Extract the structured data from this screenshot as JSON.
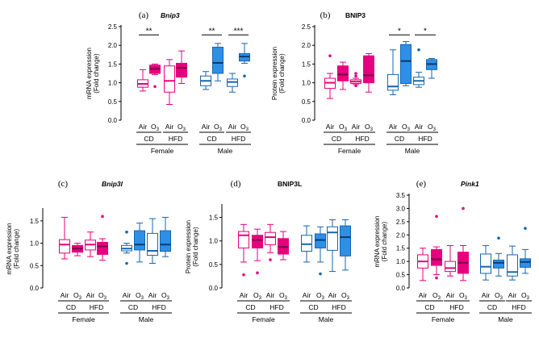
{
  "colors": {
    "female_air": "#e6007e",
    "female_o3_fill": "#e6007e",
    "male_air": "#1565b0",
    "male_o3_fill": "#2f8fe6",
    "axis": "#000000"
  },
  "chart_data": [
    {
      "id": "a",
      "type": "box",
      "letter": "(a)",
      "gene": "Bnip3",
      "italic": true,
      "ylabel_lines": [
        "mRNA expression",
        "(Fold change)"
      ],
      "ylim": [
        0,
        2.5
      ],
      "yticks": [
        0,
        0.5,
        1.0,
        1.5,
        2.0,
        2.5
      ],
      "tick_labels": [
        "0.0",
        "0.5",
        "1.0",
        "1.5",
        "2.0",
        "2.5"
      ],
      "exposure_labels": [
        "Air",
        "O3",
        "Air",
        "O3",
        "Air",
        "O3",
        "Air",
        "O3"
      ],
      "diet_labels": [
        "CD",
        "HFD",
        "CD",
        "HFD"
      ],
      "sex_labels": [
        "Female",
        "Male"
      ],
      "boxes": [
        {
          "group": "Female CD Air",
          "q1": 0.88,
          "median": 0.97,
          "q3": 1.08,
          "whisker_low": 0.78,
          "whisker_high": 1.35,
          "outliers": []
        },
        {
          "group": "Female CD O3",
          "q1": 1.25,
          "median": 1.37,
          "q3": 1.47,
          "whisker_low": 1.22,
          "whisker_high": 1.5,
          "outliers": [
            0.9
          ]
        },
        {
          "group": "Female HFD Air",
          "q1": 0.75,
          "median": 1.05,
          "q3": 1.45,
          "whisker_low": 0.42,
          "whisker_high": 1.62,
          "outliers": []
        },
        {
          "group": "Female HFD O3",
          "q1": 1.15,
          "median": 1.4,
          "q3": 1.52,
          "whisker_low": 0.98,
          "whisker_high": 1.85,
          "outliers": []
        },
        {
          "group": "Male CD Air",
          "q1": 0.92,
          "median": 1.05,
          "q3": 1.18,
          "whisker_low": 0.82,
          "whisker_high": 1.3,
          "outliers": []
        },
        {
          "group": "Male CD O3",
          "q1": 1.25,
          "median": 1.53,
          "q3": 1.95,
          "whisker_low": 1.05,
          "whisker_high": 2.05,
          "outliers": []
        },
        {
          "group": "Male HFD Air",
          "q1": 0.9,
          "median": 1.02,
          "q3": 1.1,
          "whisker_low": 0.75,
          "whisker_high": 1.25,
          "outliers": []
        },
        {
          "group": "Male HFD O3",
          "q1": 1.58,
          "median": 1.7,
          "q3": 1.78,
          "whisker_low": 1.52,
          "whisker_high": 2.05,
          "outliers": [
            1.18
          ]
        }
      ],
      "significance": [
        {
          "pair": [
            0,
            1
          ],
          "label": "**",
          "y": 2.28
        },
        {
          "pair": [
            4,
            5
          ],
          "label": "**",
          "y": 2.28
        },
        {
          "pair": [
            6,
            7
          ],
          "label": "***",
          "y": 2.28
        }
      ]
    },
    {
      "id": "b",
      "type": "box",
      "letter": "(b)",
      "gene": "BNIP3",
      "italic": false,
      "ylabel_lines": [
        "Protein expression",
        "(Fold change)"
      ],
      "ylim": [
        0,
        2.5
      ],
      "yticks": [
        0,
        0.5,
        1.0,
        1.5,
        2.0,
        2.5
      ],
      "tick_labels": [
        "0.0",
        "0.5",
        "1.0",
        "1.5",
        "2.0",
        "2.5"
      ],
      "exposure_labels": [
        "Air",
        "O3",
        "Air",
        "O3",
        "Air",
        "O3",
        "Air",
        "O3"
      ],
      "diet_labels": [
        "CD",
        "HFD",
        "CD",
        "HFD"
      ],
      "sex_labels": [
        "Female",
        "Male"
      ],
      "boxes": [
        {
          "group": "Female CD Air",
          "q1": 0.85,
          "median": 1.0,
          "q3": 1.12,
          "whisker_low": 0.58,
          "whisker_high": 1.25,
          "outliers": [
            1.72
          ]
        },
        {
          "group": "Female CD O3",
          "q1": 1.05,
          "median": 1.22,
          "q3": 1.45,
          "whisker_low": 0.82,
          "whisker_high": 1.55,
          "outliers": []
        },
        {
          "group": "Female HFD Air",
          "q1": 0.98,
          "median": 1.03,
          "q3": 1.08,
          "whisker_low": 0.95,
          "whisker_high": 1.12,
          "outliers": [
            0.92,
            1.18,
            1.25
          ]
        },
        {
          "group": "Female HFD O3",
          "q1": 1.0,
          "median": 1.2,
          "q3": 1.72,
          "whisker_low": 0.75,
          "whisker_high": 1.78,
          "outliers": []
        },
        {
          "group": "Male CD Air",
          "q1": 0.8,
          "median": 0.9,
          "q3": 1.22,
          "whisker_low": 0.68,
          "whisker_high": 1.88,
          "outliers": []
        },
        {
          "group": "Male CD O3",
          "q1": 0.98,
          "median": 1.58,
          "q3": 2.02,
          "whisker_low": 0.92,
          "whisker_high": 2.1,
          "outliers": []
        },
        {
          "group": "Male HFD Air",
          "q1": 0.95,
          "median": 1.05,
          "q3": 1.15,
          "whisker_low": 0.88,
          "whisker_high": 1.28,
          "outliers": [
            1.88
          ]
        },
        {
          "group": "Male HFD O3",
          "q1": 1.35,
          "median": 1.5,
          "q3": 1.62,
          "whisker_low": 1.12,
          "whisker_high": 1.65,
          "outliers": []
        }
      ],
      "significance": [
        {
          "pair": [
            4,
            5
          ],
          "label": "*",
          "y": 2.28
        },
        {
          "pair": [
            6,
            7
          ],
          "label": "*",
          "y": 2.28
        }
      ]
    },
    {
      "id": "c",
      "type": "box",
      "letter": "(c)",
      "gene": "Bnip3l",
      "italic": true,
      "ylabel_lines": [
        "mRNA expression",
        "(Fold change)"
      ],
      "ylim": [
        0,
        1.75
      ],
      "yticks": [
        0,
        0.5,
        1.0,
        1.5
      ],
      "tick_labels": [
        "0.0",
        "0.5",
        "1.0",
        "1.5"
      ],
      "exposure_labels": [
        "Air",
        "O3",
        "Air",
        "O3",
        "Air",
        "O3",
        "Air",
        "O3"
      ],
      "diet_labels": [
        "CD",
        "HFD",
        "CD",
        "HFD"
      ],
      "sex_labels": [
        "Female",
        "Male"
      ],
      "boxes": [
        {
          "group": "Female CD Air",
          "q1": 0.78,
          "median": 0.97,
          "q3": 1.08,
          "whisker_low": 0.65,
          "whisker_high": 1.58,
          "outliers": []
        },
        {
          "group": "Female CD O3",
          "q1": 0.8,
          "median": 0.88,
          "q3": 0.95,
          "whisker_low": 0.72,
          "whisker_high": 1.0,
          "outliers": []
        },
        {
          "group": "Female HFD Air",
          "q1": 0.85,
          "median": 0.97,
          "q3": 1.07,
          "whisker_low": 0.7,
          "whisker_high": 1.25,
          "outliers": []
        },
        {
          "group": "Female HFD O3",
          "q1": 0.75,
          "median": 0.93,
          "q3": 1.02,
          "whisker_low": 0.62,
          "whisker_high": 1.1,
          "outliers": [
            1.6
          ]
        },
        {
          "group": "Male CD Air",
          "q1": 0.83,
          "median": 0.88,
          "q3": 0.95,
          "whisker_low": 0.78,
          "whisker_high": 1.0,
          "outliers": [
            1.25,
            0.55
          ]
        },
        {
          "group": "Male CD O3",
          "q1": 0.85,
          "median": 0.97,
          "q3": 1.28,
          "whisker_low": 0.58,
          "whisker_high": 1.45,
          "outliers": []
        },
        {
          "group": "Male HFD Air",
          "q1": 0.73,
          "median": 0.83,
          "q3": 1.22,
          "whisker_low": 0.55,
          "whisker_high": 1.55,
          "outliers": []
        },
        {
          "group": "Male HFD O3",
          "q1": 0.82,
          "median": 0.97,
          "q3": 1.28,
          "whisker_low": 0.7,
          "whisker_high": 1.58,
          "outliers": []
        }
      ],
      "significance": []
    },
    {
      "id": "d",
      "type": "box",
      "letter": "(d)",
      "gene": "BNIP3L",
      "italic": false,
      "ylabel_lines": [
        "Protein expression",
        "(Fold change)"
      ],
      "ylim": [
        0,
        1.75
      ],
      "yticks": [
        0,
        0.5,
        1.0,
        1.5
      ],
      "tick_labels": [
        "0.0",
        "0.5",
        "1.0",
        "1.5"
      ],
      "exposure_labels": [
        "Air",
        "O3",
        "Air",
        "O3",
        "Air",
        "O3",
        "Air",
        "O3"
      ],
      "diet_labels": [
        "CD",
        "HFD",
        "CD",
        "HFD"
      ],
      "sex_labels": [
        "Female",
        "Male"
      ],
      "boxes": [
        {
          "group": "Female CD Air",
          "q1": 0.85,
          "median": 1.12,
          "q3": 1.2,
          "whisker_low": 0.55,
          "whisker_high": 1.35,
          "outliers": [
            0.28
          ]
        },
        {
          "group": "Female CD O3",
          "q1": 0.85,
          "median": 1.02,
          "q3": 1.12,
          "whisker_low": 0.58,
          "whisker_high": 1.25,
          "outliers": [
            0.32
          ]
        },
        {
          "group": "Female HFD Air",
          "q1": 0.92,
          "median": 1.08,
          "q3": 1.18,
          "whisker_low": 0.75,
          "whisker_high": 1.35,
          "outliers": [
            0.6
          ]
        },
        {
          "group": "Female HFD O3",
          "q1": 0.72,
          "median": 0.87,
          "q3": 1.05,
          "whisker_low": 0.6,
          "whisker_high": 1.2,
          "outliers": []
        },
        {
          "group": "Male CD Air",
          "q1": 0.78,
          "median": 0.93,
          "q3": 1.12,
          "whisker_low": 0.55,
          "whisker_high": 1.32,
          "outliers": []
        },
        {
          "group": "Male CD O3",
          "q1": 0.85,
          "median": 1.02,
          "q3": 1.15,
          "whisker_low": 0.55,
          "whisker_high": 1.3,
          "outliers": [
            0.3
          ]
        },
        {
          "group": "Male HFD Air",
          "q1": 0.8,
          "median": 1.18,
          "q3": 1.3,
          "whisker_low": 0.35,
          "whisker_high": 1.45,
          "outliers": []
        },
        {
          "group": "Male HFD O3",
          "q1": 0.68,
          "median": 1.08,
          "q3": 1.32,
          "whisker_low": 0.38,
          "whisker_high": 1.45,
          "outliers": []
        }
      ],
      "significance": []
    },
    {
      "id": "e",
      "type": "box",
      "letter": "(e)",
      "gene": "Pink1",
      "italic": true,
      "ylabel_lines": [
        "mRNA expression",
        "(Fold change)"
      ],
      "ylim": [
        0,
        3.5
      ],
      "yticks": [
        0,
        0.5,
        1.0,
        1.5,
        2.0,
        2.5,
        3.0,
        3.5
      ],
      "tick_labels": [
        "0.0",
        "0.5",
        "1.0",
        "1.5",
        "2.0",
        "2.5",
        "3.0",
        "3.5"
      ],
      "exposure_labels": [
        "Air",
        "O3",
        "Air",
        "O3",
        "Air",
        "O3",
        "Air",
        "O3"
      ],
      "diet_labels": [
        "CD",
        "HFD",
        "CD",
        "HFD"
      ],
      "sex_labels": [
        "Female",
        "Male"
      ],
      "boxes": [
        {
          "group": "Female CD Air",
          "q1": 0.75,
          "median": 1.0,
          "q3": 1.25,
          "whisker_low": 0.28,
          "whisker_high": 1.5,
          "outliers": []
        },
        {
          "group": "Female CD O3",
          "q1": 0.85,
          "median": 1.08,
          "q3": 1.45,
          "whisker_low": 0.5,
          "whisker_high": 1.55,
          "outliers": [
            2.7,
            0.38
          ]
        },
        {
          "group": "Female HFD Air",
          "q1": 0.62,
          "median": 0.75,
          "q3": 1.0,
          "whisker_low": 0.45,
          "whisker_high": 1.6,
          "outliers": []
        },
        {
          "group": "Female HFD O3",
          "q1": 0.55,
          "median": 0.95,
          "q3": 1.35,
          "whisker_low": 0.28,
          "whisker_high": 1.6,
          "outliers": [
            3.0
          ]
        },
        {
          "group": "Male CD Air",
          "q1": 0.55,
          "median": 0.8,
          "q3": 1.28,
          "whisker_low": 0.3,
          "whisker_high": 1.6,
          "outliers": []
        },
        {
          "group": "Male CD O3",
          "q1": 0.75,
          "median": 0.95,
          "q3": 1.05,
          "whisker_low": 0.45,
          "whisker_high": 1.3,
          "outliers": [
            1.88
          ]
        },
        {
          "group": "Male HFD Air",
          "q1": 0.45,
          "median": 0.6,
          "q3": 1.25,
          "whisker_low": 0.3,
          "whisker_high": 1.58,
          "outliers": []
        },
        {
          "group": "Male HFD O3",
          "q1": 0.78,
          "median": 0.98,
          "q3": 1.1,
          "whisker_low": 0.55,
          "whisker_high": 1.45,
          "outliers": [
            2.25
          ]
        }
      ],
      "significance": []
    }
  ]
}
